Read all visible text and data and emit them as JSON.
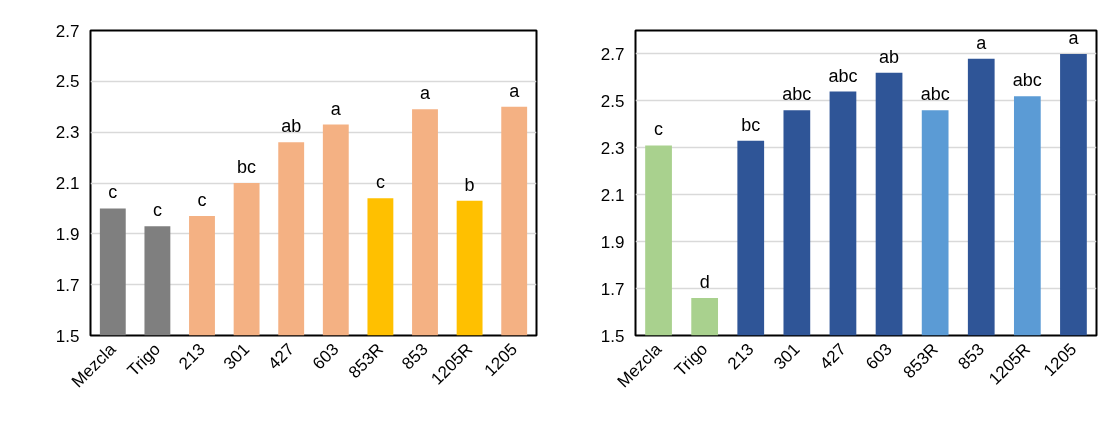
{
  "chart_data": [
    {
      "type": "bar",
      "categories": [
        "Mezcla",
        "Trigo",
        "213",
        "301",
        "427",
        "603",
        "853R",
        "853",
        "1205R",
        "1205"
      ],
      "values": [
        2.0,
        1.93,
        1.97,
        2.1,
        2.26,
        2.33,
        2.04,
        2.39,
        2.03,
        2.4
      ],
      "colors": [
        "#7f7f7f",
        "#7f7f7f",
        "#f4b183",
        "#f4b183",
        "#f4b183",
        "#f4b183",
        "#ffc000",
        "#f4b183",
        "#ffc000",
        "#f4b183"
      ],
      "ylim": [
        1.5,
        2.7
      ],
      "yticks": [
        {
          "value": 1.5,
          "label": "1.5"
        },
        {
          "value": 1.7,
          "label": "1.7"
        },
        {
          "value": 1.9,
          "label": "1.9"
        },
        {
          "value": 2.1,
          "label": "2.1"
        },
        {
          "value": 2.3,
          "label": "2.3"
        },
        {
          "value": 2.5,
          "label": "2.5"
        },
        {
          "value": 2.7,
          "label": "2.7"
        }
      ],
      "grid": "y",
      "annotations": [
        {
          "text": "c",
          "x": "Mezcla",
          "y": 2.0
        },
        {
          "text": "c",
          "x": "Trigo",
          "y": 1.93
        },
        {
          "text": "c",
          "x": "213",
          "y": 1.97
        },
        {
          "text": "bc",
          "x": "301",
          "y": 2.1
        },
        {
          "text": "ab",
          "x": "427",
          "y": 2.26
        },
        {
          "text": "a",
          "x": "603",
          "y": 2.33
        },
        {
          "text": "c",
          "x": "853R",
          "y": 2.04
        },
        {
          "text": "a",
          "x": "853",
          "y": 2.39
        },
        {
          "text": "b",
          "x": "1205R",
          "y": 2.03
        },
        {
          "text": "a",
          "x": "1205",
          "y": 2.4
        }
      ]
    },
    {
      "type": "bar",
      "categories": [
        "Mezcla",
        "Trigo",
        "213",
        "301",
        "427",
        "603",
        "853R",
        "853",
        "1205R",
        "1205"
      ],
      "values": [
        2.31,
        1.66,
        2.33,
        2.46,
        2.54,
        2.62,
        2.46,
        2.68,
        2.52,
        2.7
      ],
      "colors": [
        "#a9d18e",
        "#a9d18e",
        "#2f5597",
        "#2f5597",
        "#2f5597",
        "#2f5597",
        "#5b9bd5",
        "#2f5597",
        "#5b9bd5",
        "#2f5597"
      ],
      "ylim": [
        1.5,
        2.8
      ],
      "yticks": [
        {
          "value": 1.5,
          "label": "1.5"
        },
        {
          "value": 1.7,
          "label": "1.7"
        },
        {
          "value": 1.9,
          "label": "1.9"
        },
        {
          "value": 2.1,
          "label": "2.1"
        },
        {
          "value": 2.3,
          "label": "2.3"
        },
        {
          "value": 2.5,
          "label": "2.5"
        },
        {
          "value": 2.7,
          "label": "2.7"
        }
      ],
      "grid": "y",
      "annotations": [
        {
          "text": "c",
          "x": "Mezcla",
          "y": 2.31
        },
        {
          "text": "d",
          "x": "Trigo",
          "y": 1.66
        },
        {
          "text": "bc",
          "x": "213",
          "y": 2.33
        },
        {
          "text": "abc",
          "x": "301",
          "y": 2.46
        },
        {
          "text": "abc",
          "x": "427",
          "y": 2.54
        },
        {
          "text": "ab",
          "x": "603",
          "y": 2.62
        },
        {
          "text": "abc",
          "x": "853R",
          "y": 2.46
        },
        {
          "text": "a",
          "x": "853",
          "y": 2.68
        },
        {
          "text": "abc",
          "x": "1205R",
          "y": 2.52
        },
        {
          "text": "a",
          "x": "1205",
          "y": 2.7
        }
      ]
    }
  ]
}
